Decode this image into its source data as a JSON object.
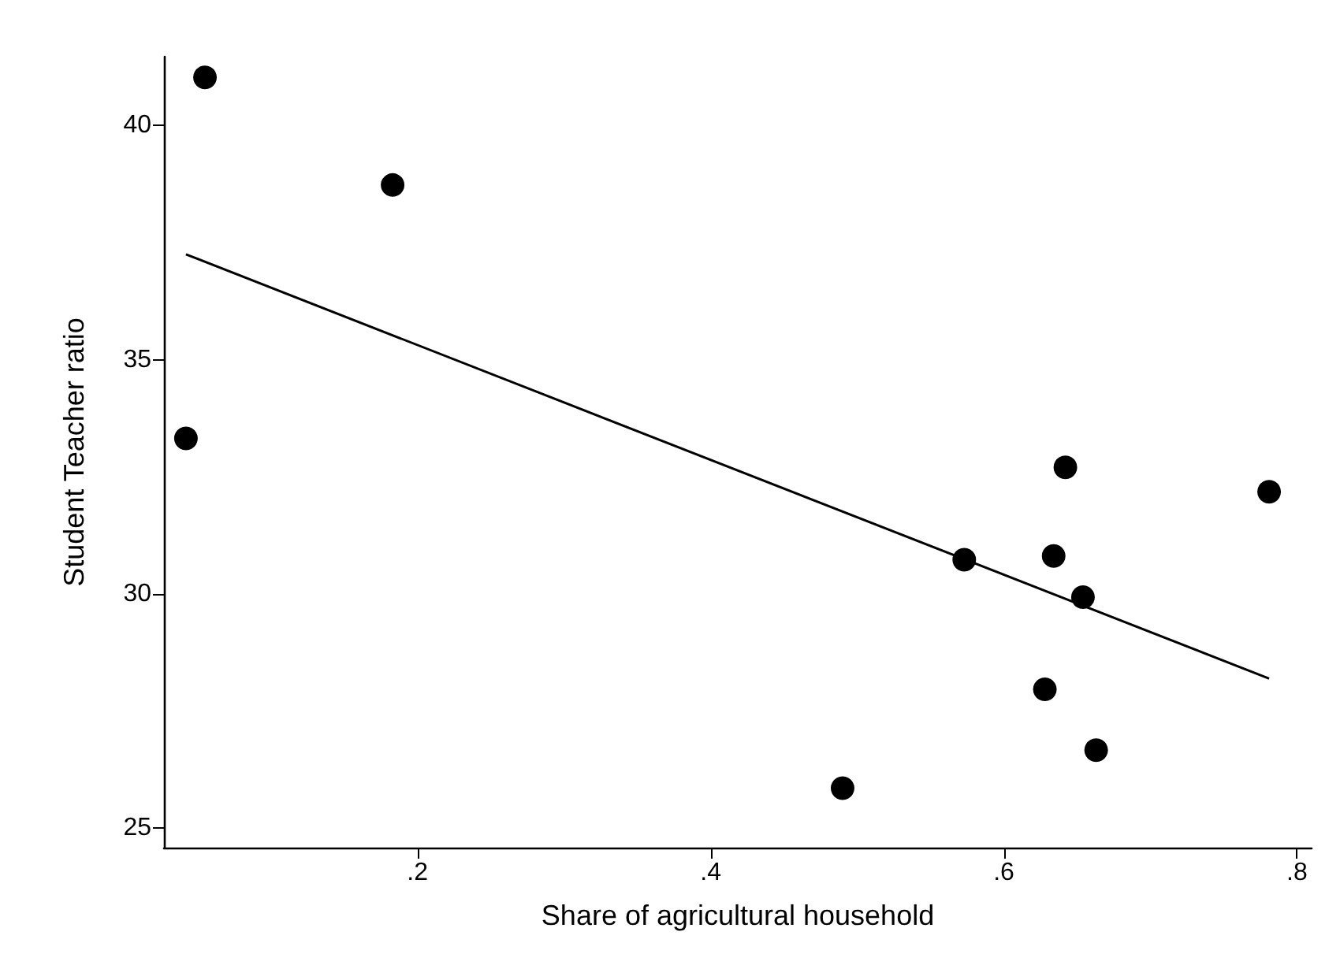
{
  "chart_data": {
    "type": "scatter",
    "xlabel": "Share of agricultural household",
    "ylabel": "Student Teacher ratio",
    "x": [
      0.055,
      0.183,
      0.042,
      0.642,
      0.781,
      0.573,
      0.634,
      0.654,
      0.628,
      0.663,
      0.49
    ],
    "series": [
      {
        "color": "#000000",
        "marker": "circle",
        "values": [
          41.03,
          38.73,
          33.32,
          32.7,
          32.18,
          30.73,
          30.81,
          29.93,
          27.96,
          26.66,
          25.85
        ]
      },
      {
        "type": "line",
        "color": "#000000",
        "marker": "none",
        "x": [
          0.042,
          0.781
        ],
        "values": [
          37.25,
          28.19
        ]
      }
    ],
    "xlim": [
      0.027,
      0.81
    ],
    "xticks": [
      {
        "value": 0.2,
        "label": ".2"
      },
      {
        "value": 0.4,
        "label": ".4"
      },
      {
        "value": 0.6,
        "label": ".6"
      },
      {
        "value": 0.8,
        "label": ".8"
      }
    ],
    "ylim": [
      24.58,
      41.47
    ],
    "yticks": [
      25,
      30,
      35,
      40
    ],
    "grid": false
  }
}
